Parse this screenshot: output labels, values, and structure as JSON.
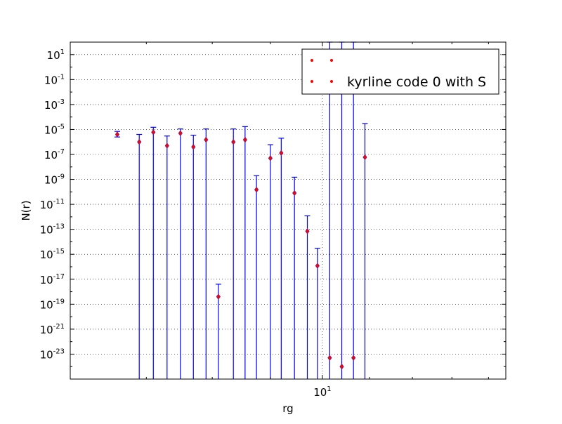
{
  "chart_data": {
    "type": "scatter",
    "xlabel": "rg",
    "ylabel": "N(r)",
    "x_scale": "log",
    "y_scale": "log",
    "xlim": [
      6.0,
      14.5
    ],
    "ylim": [
      1e-25,
      100.0
    ],
    "grid": true,
    "legend_position": "top-right",
    "x_ticks": [
      {
        "value": 10,
        "base": "10",
        "exp": "1"
      }
    ],
    "y_ticks": [
      {
        "value": 10.0,
        "base": "10",
        "exp": "1"
      },
      {
        "value": 0.1,
        "base": "10",
        "exp": "-1"
      },
      {
        "value": 0.001,
        "base": "10",
        "exp": "-3"
      },
      {
        "value": 1e-05,
        "base": "10",
        "exp": "-5"
      },
      {
        "value": 1e-07,
        "base": "10",
        "exp": "-7"
      },
      {
        "value": 1e-09,
        "base": "10",
        "exp": "-9"
      },
      {
        "value": 1e-11,
        "base": "10",
        "exp": "-11"
      },
      {
        "value": 1e-13,
        "base": "10",
        "exp": "-13"
      },
      {
        "value": 1e-15,
        "base": "10",
        "exp": "-15"
      },
      {
        "value": 1e-17,
        "base": "10",
        "exp": "-17"
      },
      {
        "value": 1e-19,
        "base": "10",
        "exp": "-19"
      },
      {
        "value": 1e-21,
        "base": "10",
        "exp": "-21"
      },
      {
        "value": 1e-23,
        "base": "10",
        "exp": "-23"
      }
    ],
    "series": [
      {
        "name": "",
        "color": "#ff0000",
        "marker_edge": "#8b1a6b",
        "errorbar_color": "#0000ff",
        "points": [
          {
            "x": 6.6,
            "y": 4e-06,
            "err_lo": 2.5e-06,
            "err_hi": 7e-06
          },
          {
            "x": 6.9,
            "y": 1e-06,
            "err_lo": null,
            "err_hi": 4e-06
          },
          {
            "x": 7.1,
            "y": 6e-06,
            "err_lo": null,
            "err_hi": 1.5e-05
          },
          {
            "x": 7.3,
            "y": 5e-07,
            "err_lo": null,
            "err_hi": 3e-06
          },
          {
            "x": 7.5,
            "y": 5e-06,
            "err_lo": null,
            "err_hi": 1.1e-05
          },
          {
            "x": 7.7,
            "y": 4e-07,
            "err_lo": null,
            "err_hi": 3.5e-06
          },
          {
            "x": 7.9,
            "y": 1.5e-06,
            "err_lo": null,
            "err_hi": 1.1e-05
          },
          {
            "x": 8.1,
            "y": 4e-19,
            "err_lo": null,
            "err_hi": 4e-18
          },
          {
            "x": 8.35,
            "y": 1e-06,
            "err_lo": null,
            "err_hi": 1.1e-05
          },
          {
            "x": 8.55,
            "y": 1.5e-06,
            "err_lo": null,
            "err_hi": 1.7e-05
          },
          {
            "x": 8.75,
            "y": 1.5e-10,
            "err_lo": null,
            "err_hi": 2e-09
          },
          {
            "x": 9.0,
            "y": 5e-08,
            "err_lo": null,
            "err_hi": 6e-07
          },
          {
            "x": 9.2,
            "y": 1.3e-07,
            "err_lo": null,
            "err_hi": 2e-06
          },
          {
            "x": 9.45,
            "y": 8e-11,
            "err_lo": null,
            "err_hi": 1.5e-09
          },
          {
            "x": 9.7,
            "y": 7e-14,
            "err_lo": null,
            "err_hi": 1.2e-12
          },
          {
            "x": 9.9,
            "y": 1.2e-16,
            "err_lo": null,
            "err_hi": 3e-15
          },
          {
            "x": 10.15,
            "y": 5e-24,
            "err_lo": null,
            "err_hi": 100.0
          },
          {
            "x": 10.4,
            "y": 1e-24,
            "err_lo": null,
            "err_hi": 100.0
          },
          {
            "x": 10.65,
            "y": 5e-24,
            "err_lo": null,
            "err_hi": 100.0
          },
          {
            "x": 10.9,
            "y": 6e-08,
            "err_lo": null,
            "err_hi": 3e-05
          }
        ]
      }
    ]
  },
  "legend": {
    "entries": [
      {
        "label": "",
        "color": "#ff0000"
      },
      {
        "label": "kyrline code 0 with S",
        "color": "#ff0000"
      }
    ]
  }
}
